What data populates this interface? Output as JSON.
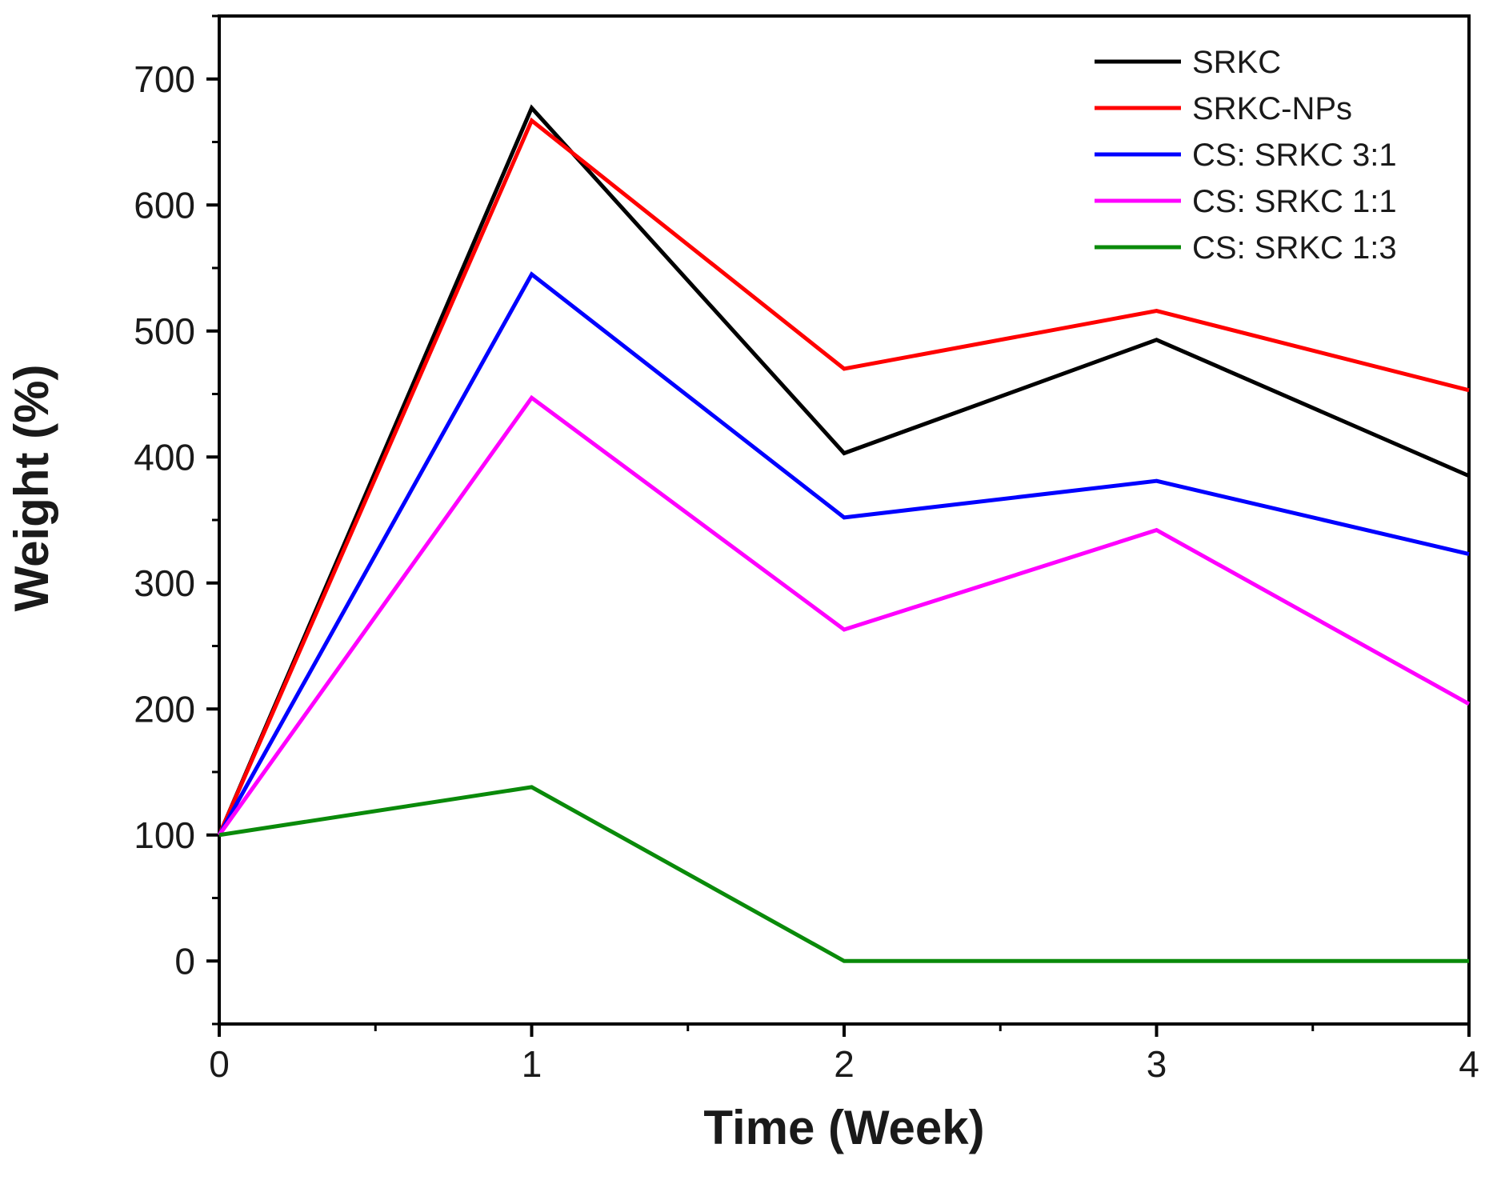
{
  "chart_data": {
    "type": "line",
    "title": "",
    "xlabel": "Time (Week)",
    "ylabel": "Weight (%)",
    "xlim": [
      0,
      4
    ],
    "ylim": [
      -50,
      750
    ],
    "x_ticks": [
      0,
      1,
      2,
      3,
      4
    ],
    "x_minor_ticks": [
      0.5,
      1.5,
      2.5,
      3.5
    ],
    "y_ticks": [
      0,
      100,
      200,
      300,
      400,
      500,
      600,
      700
    ],
    "y_minor_ticks": [
      -50,
      50,
      150,
      250,
      350,
      450,
      550,
      650,
      750
    ],
    "grid": false,
    "legend_position": "top-right",
    "x": [
      0,
      1,
      2,
      3,
      4
    ],
    "series": [
      {
        "name": "SRKC",
        "color": "#000000",
        "values": [
          100,
          677,
          403,
          493,
          385
        ]
      },
      {
        "name": "SRKC-NPs",
        "color": "#ff0000",
        "values": [
          100,
          667,
          470,
          516,
          453
        ]
      },
      {
        "name": "CS: SRKC 3:1",
        "color": "#0000ff",
        "values": [
          100,
          545,
          352,
          381,
          323
        ]
      },
      {
        "name": "CS: SRKC 1:1",
        "color": "#ff00ff",
        "values": [
          100,
          447,
          263,
          342,
          204
        ]
      },
      {
        "name": "CS: SRKC 1:3",
        "color": "#0a8a0a",
        "values": [
          100,
          138,
          0,
          0,
          0
        ]
      }
    ]
  }
}
